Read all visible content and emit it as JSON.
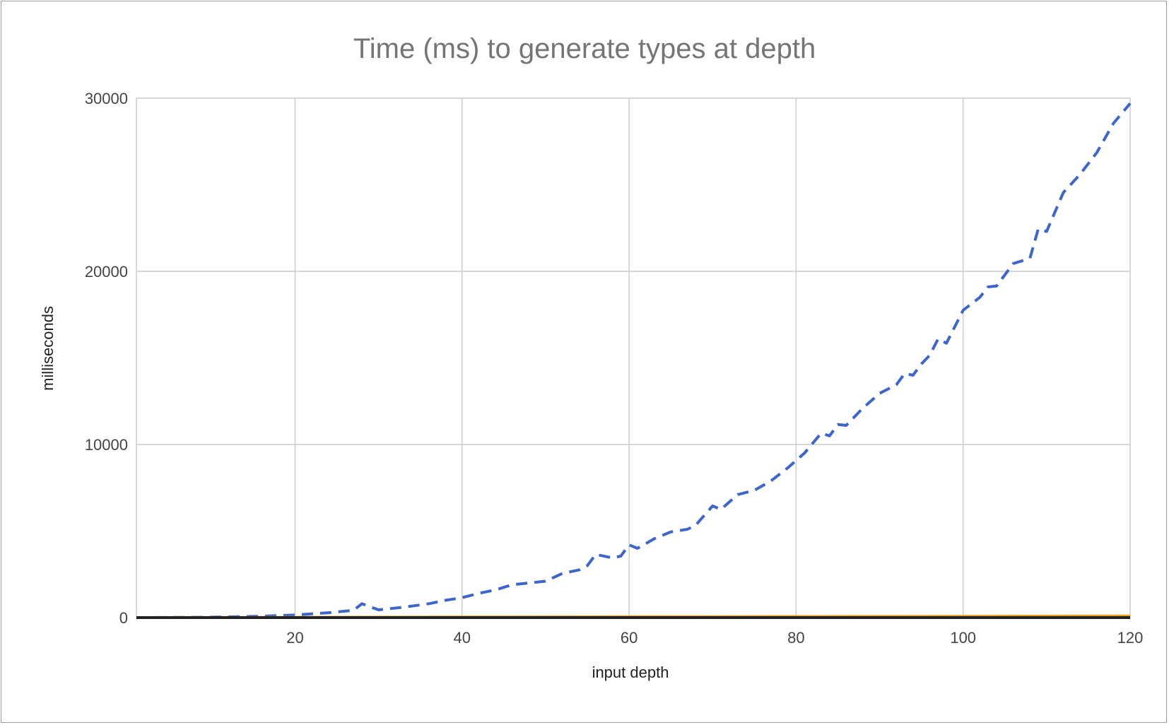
{
  "chart_data": {
    "type": "line",
    "title": "Time (ms) to generate types at depth",
    "xlabel": "input depth",
    "ylabel": "milliseconds",
    "xlim": [
      1,
      120
    ],
    "ylim": [
      0,
      30000
    ],
    "x_ticks": [
      "20",
      "40",
      "60",
      "80",
      "100",
      "120"
    ],
    "y_ticks": [
      "0",
      "10000",
      "20000",
      "30000"
    ],
    "gridlines": true,
    "legend": "none",
    "series": [
      {
        "color": "#3c66cc",
        "style": "dashed",
        "x": [
          1,
          4,
          8,
          12,
          16,
          20,
          24,
          27,
          28,
          30,
          33,
          36,
          38,
          40,
          42,
          44,
          46,
          48,
          50,
          52,
          54,
          55,
          56,
          58,
          59,
          60,
          61,
          63,
          65,
          67,
          68,
          70,
          71,
          73,
          75,
          77,
          79,
          81,
          83,
          84,
          85,
          86,
          88,
          90,
          92,
          93,
          94,
          95,
          96,
          97,
          98,
          100,
          102,
          103,
          104,
          106,
          108,
          109,
          110,
          112,
          114,
          116,
          118,
          120
        ],
        "y": [
          0,
          5,
          15,
          40,
          80,
          150,
          280,
          420,
          800,
          450,
          600,
          800,
          1000,
          1150,
          1400,
          1600,
          1900,
          2000,
          2100,
          2550,
          2750,
          3000,
          3650,
          3450,
          3550,
          4200,
          4000,
          4550,
          4950,
          5100,
          5350,
          6450,
          6250,
          7100,
          7350,
          7900,
          8650,
          9500,
          10650,
          10500,
          11150,
          11100,
          12100,
          12950,
          13450,
          14100,
          14000,
          14650,
          15150,
          16100,
          15850,
          17750,
          18500,
          19100,
          19150,
          20450,
          20750,
          22450,
          22300,
          24550,
          25600,
          26850,
          28550,
          29700
        ]
      },
      {
        "color": "#f09e1b",
        "style": "solid",
        "x": [
          1,
          120
        ],
        "y": [
          0,
          90
        ]
      },
      {
        "color": "#222222",
        "style": "solid",
        "x": [
          1,
          120
        ],
        "y": [
          0,
          0
        ]
      }
    ]
  }
}
